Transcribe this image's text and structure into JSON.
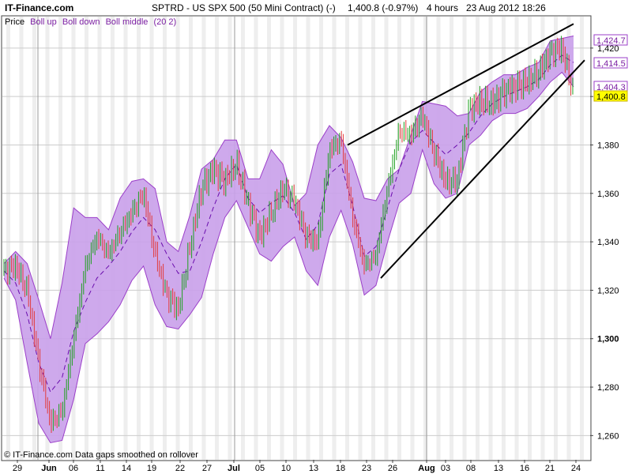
{
  "header": {
    "brand": "IT-Finance.com",
    "title": "SPTRD - US SPX 500 (50 Mini Contract) (-)",
    "last": "1,400.8 (-0.97%)",
    "interval": "4 hours",
    "datetime": "23 Aug 2012 18:26"
  },
  "legend": {
    "price": "Price",
    "boll_up": "Boll up",
    "boll_down": "Boll down",
    "boll_middle": "Boll middle",
    "params": "(20 2)"
  },
  "footer": {
    "note": "© IT-Finance.com  Data gaps smoothed on rollover"
  },
  "colors": {
    "band_fill": "#c9a0ea",
    "band_edge": "#9b3fc9",
    "middle": "#6a0dad",
    "up_candle": "#1fa01f",
    "down_candle": "#e33b3b",
    "shade": "#eeeeee",
    "trendline": "#000000",
    "last_price_bg": "#ffff00"
  },
  "chart_data": {
    "type": "candlestick",
    "title": "SPTRD - US SPX 500 (50 Mini Contract) (-)",
    "timeframe": "4 hours",
    "ylim": [
      1250,
      1433
    ],
    "yticks": [
      1260,
      1280,
      1300,
      1320,
      1340,
      1360,
      1380,
      1400,
      1420
    ],
    "ytick_labels": [
      "1,260",
      "1,280",
      "1,300",
      "1,320",
      "1,340",
      "1,360",
      "1,380",
      "1,400",
      "1,420"
    ],
    "xtick_labels": [
      "29",
      "Jun",
      "06",
      "11",
      "14",
      "19",
      "22",
      "27",
      "Jul",
      "05",
      "10",
      "13",
      "18",
      "23",
      "26",
      "Aug",
      "03",
      "08",
      "13",
      "16",
      "21",
      "24"
    ],
    "month_separators": [
      "Jun",
      "Jul",
      "Aug"
    ],
    "price_tags": [
      {
        "label": "1,424.7",
        "value": 1424.7,
        "series": "Boll up"
      },
      {
        "label": "1,414.5",
        "value": 1414.5,
        "series": "Boll middle"
      },
      {
        "label": "1,404.3",
        "value": 1404.3,
        "series": "Boll down"
      },
      {
        "label": "1,400.8",
        "value": 1400.8,
        "series": "Price"
      }
    ],
    "series": [
      {
        "name": "Boll up",
        "values": [
          1331,
          1336,
          1331,
          1316,
          1300,
          1323,
          1354,
          1350,
          1350,
          1345,
          1358,
          1365,
          1366,
          1362,
          1340,
          1336,
          1351,
          1370,
          1374,
          1382,
          1382,
          1366,
          1366,
          1378,
          1372,
          1355,
          1360,
          1380,
          1388,
          1383,
          1373,
          1358,
          1357,
          1366,
          1370,
          1384,
          1398,
          1397,
          1396,
          1392,
          1393,
          1402,
          1406,
          1409,
          1409,
          1412,
          1414,
          1423,
          1424,
          1425
        ]
      },
      {
        "name": "Boll middle",
        "values": [
          1328,
          1323,
          1310,
          1290,
          1278,
          1284,
          1303,
          1315,
          1325,
          1330,
          1336,
          1344,
          1350,
          1345,
          1335,
          1327,
          1328,
          1340,
          1354,
          1366,
          1372,
          1358,
          1352,
          1356,
          1359,
          1352,
          1341,
          1347,
          1368,
          1372,
          1355,
          1334,
          1338,
          1354,
          1370,
          1381,
          1386,
          1381,
          1376,
          1380,
          1385,
          1392,
          1397,
          1400,
          1402,
          1404,
          1407,
          1413,
          1417,
          1414
        ]
      },
      {
        "name": "Boll down",
        "values": [
          1325,
          1316,
          1290,
          1265,
          1257,
          1258,
          1275,
          1298,
          1302,
          1307,
          1314,
          1324,
          1330,
          1314,
          1305,
          1304,
          1310,
          1317,
          1335,
          1350,
          1357,
          1346,
          1335,
          1332,
          1338,
          1342,
          1328,
          1322,
          1342,
          1353,
          1339,
          1318,
          1322,
          1340,
          1356,
          1360,
          1378,
          1364,
          1358,
          1360,
          1380,
          1384,
          1390,
          1393,
          1393,
          1395,
          1400,
          1406,
          1410,
          1404
        ]
      },
      {
        "name": "Price",
        "values": [
          1328,
          1330,
          1320,
          1290,
          1265,
          1270,
          1300,
          1330,
          1342,
          1335,
          1344,
          1352,
          1360,
          1335,
          1318,
          1312,
          1338,
          1362,
          1370,
          1365,
          1372,
          1356,
          1342,
          1352,
          1362,
          1357,
          1342,
          1340,
          1378,
          1382,
          1350,
          1330,
          1334,
          1362,
          1386,
          1384,
          1392,
          1377,
          1365,
          1365,
          1395,
          1398,
          1397,
          1402,
          1404,
          1406,
          1410,
          1418,
          1420,
          1401
        ]
      }
    ],
    "trendlines": [
      {
        "name": "upper",
        "from": 1380,
        "to": 1430
      },
      {
        "name": "lower",
        "from": 1325,
        "to": 1415
      }
    ]
  }
}
